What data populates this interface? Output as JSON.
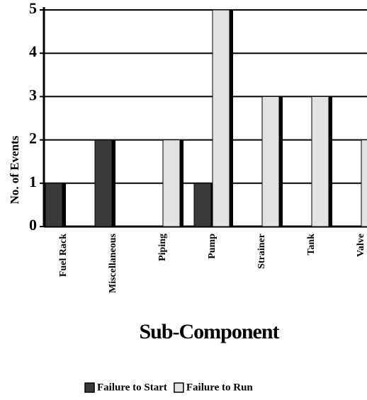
{
  "chart_data": {
    "type": "bar",
    "categories": [
      "Fuel Rack",
      "Miscellaneous",
      "Piping",
      "Pump",
      "Strainer",
      "Tank",
      "Valve"
    ],
    "series": [
      {
        "name": "Failure to Start",
        "color": "#3a3a3a",
        "values": [
          1,
          2,
          0,
          1,
          0,
          0,
          0
        ]
      },
      {
        "name": "Failure to Run",
        "color": "#e2e2e2",
        "values": [
          0,
          0,
          2,
          5,
          3,
          3,
          2
        ]
      }
    ],
    "ylabel": "No. of Events",
    "xlabel": "Sub-Component",
    "ylim": [
      0,
      5
    ],
    "yticks": [
      0,
      1,
      2,
      3,
      4,
      5
    ],
    "grid": true,
    "legend": "bottom"
  }
}
